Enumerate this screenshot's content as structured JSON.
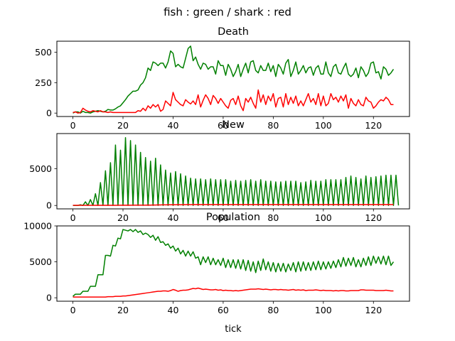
{
  "figure": {
    "suptitle": "fish : green / shark : red",
    "xlabel": "tick",
    "colors": {
      "fish": "#008000",
      "shark": "#ff0000"
    }
  },
  "chart_data": [
    {
      "type": "line",
      "title": "Death",
      "x_ticks": [
        0,
        20,
        40,
        60,
        80,
        100,
        120
      ],
      "y_ticks": [
        0,
        250,
        500
      ],
      "xlim": [
        -6.4,
        134.4
      ],
      "ylim": [
        -28,
        590
      ],
      "x_start": 0,
      "x_step": 1,
      "series": [
        {
          "color": "#008000",
          "values": [
            0,
            10,
            10,
            0,
            15,
            5,
            5,
            0,
            10,
            15,
            20,
            15,
            10,
            15,
            30,
            25,
            25,
            35,
            50,
            60,
            85,
            110,
            140,
            160,
            180,
            180,
            190,
            230,
            250,
            290,
            370,
            350,
            420,
            410,
            390,
            410,
            410,
            370,
            420,
            510,
            490,
            380,
            400,
            380,
            370,
            450,
            530,
            550,
            430,
            460,
            400,
            360,
            410,
            400,
            360,
            380,
            380,
            320,
            430,
            390,
            390,
            310,
            400,
            360,
            300,
            340,
            400,
            300,
            360,
            410,
            330,
            420,
            430,
            350,
            330,
            390,
            350,
            350,
            410,
            340,
            390,
            300,
            400,
            370,
            320,
            410,
            440,
            300,
            350,
            420,
            320,
            350,
            390,
            330,
            370,
            380,
            310,
            370,
            390,
            320,
            320,
            420,
            330,
            300,
            380,
            400,
            330,
            320,
            370,
            410,
            320,
            300,
            320,
            370,
            290,
            380,
            350,
            300,
            330,
            410,
            420,
            330,
            340,
            280,
            380,
            360,
            310,
            330,
            360
          ]
        },
        {
          "color": "#ff0000",
          "values": [
            5,
            10,
            0,
            5,
            40,
            25,
            15,
            10,
            20,
            15,
            10,
            20,
            10,
            10,
            5,
            10,
            5,
            5,
            5,
            5,
            5,
            5,
            5,
            5,
            5,
            5,
            20,
            15,
            40,
            20,
            60,
            40,
            70,
            50,
            70,
            15,
            30,
            100,
            80,
            60,
            170,
            110,
            90,
            70,
            60,
            110,
            90,
            75,
            100,
            70,
            150,
            50,
            105,
            150,
            120,
            70,
            145,
            120,
            80,
            120,
            90,
            60,
            40,
            105,
            120,
            70,
            140,
            60,
            20,
            120,
            90,
            130,
            80,
            40,
            190,
            90,
            150,
            70,
            140,
            100,
            160,
            50,
            120,
            130,
            50,
            160,
            70,
            130,
            80,
            140,
            60,
            100,
            60,
            110,
            160,
            90,
            120,
            70,
            160,
            60,
            140,
            60,
            80,
            160,
            110,
            130,
            90,
            140,
            100,
            150,
            40,
            120,
            80,
            60,
            110,
            70,
            60,
            130,
            100,
            90,
            40,
            60,
            90,
            110,
            100,
            130,
            110,
            70,
            70
          ]
        }
      ]
    },
    {
      "type": "line",
      "title": "New",
      "x_ticks": [
        0,
        20,
        40,
        60,
        80,
        100,
        120
      ],
      "y_ticks": [
        0,
        5000
      ],
      "xlim": [
        -6.4,
        134.4
      ],
      "ylim": [
        -460,
        9750
      ],
      "x_start": 0,
      "x_step": 1,
      "series": [
        {
          "color": "#008000",
          "values": [
            0,
            0,
            0,
            100,
            0,
            500,
            0,
            800,
            0,
            1600,
            0,
            3100,
            0,
            4700,
            0,
            5800,
            0,
            8200,
            0,
            7500,
            0,
            9200,
            0,
            8800,
            0,
            8200,
            0,
            7200,
            0,
            6500,
            0,
            6000,
            0,
            6400,
            0,
            5500,
            0,
            4800,
            0,
            4400,
            0,
            4600,
            0,
            4300,
            0,
            4000,
            0,
            3700,
            0,
            3600,
            0,
            3600,
            0,
            3500,
            0,
            3600,
            0,
            3500,
            0,
            3500,
            0,
            3500,
            0,
            3300,
            0,
            3400,
            0,
            3300,
            0,
            3400,
            0,
            3500,
            0,
            3300,
            0,
            3500,
            0,
            3300,
            0,
            3300,
            0,
            3200,
            0,
            3200,
            0,
            3300,
            0,
            3300,
            0,
            3300,
            0,
            3100,
            0,
            3200,
            0,
            3400,
            0,
            3300,
            0,
            3300,
            0,
            3500,
            0,
            3500,
            0,
            3500,
            0,
            3500,
            0,
            3800,
            0,
            4000,
            0,
            3800,
            0,
            3600,
            0,
            4000,
            0,
            3800,
            0,
            3900,
            0,
            4000,
            0,
            4100,
            0,
            4100,
            0,
            4100,
            0
          ]
        },
        {
          "color": "#ff0000",
          "values": [
            20,
            20,
            20,
            20,
            20,
            20,
            20,
            20,
            20,
            20,
            30,
            20,
            30,
            20,
            30,
            20,
            30,
            20,
            30,
            30,
            40,
            30,
            40,
            30,
            40,
            40,
            50,
            40,
            50,
            50,
            60,
            50,
            70,
            60,
            80,
            70,
            100,
            80,
            100,
            90,
            110,
            100,
            120,
            100,
            120,
            110,
            130,
            110,
            130,
            120,
            130,
            120,
            130,
            120,
            130,
            120,
            130,
            120,
            130,
            120,
            130,
            120,
            130,
            120,
            130,
            120,
            130,
            120,
            130,
            120,
            130,
            120,
            130,
            120,
            130,
            120,
            130,
            120,
            130,
            120,
            130,
            120,
            130,
            120,
            130,
            120,
            130,
            120,
            130,
            120,
            130,
            120,
            130,
            120,
            130,
            120,
            130,
            120,
            130,
            120,
            130,
            120,
            130,
            120,
            130,
            120,
            130,
            120,
            130,
            120,
            130,
            120,
            130,
            120,
            130,
            120,
            130,
            120,
            130,
            120,
            130,
            120,
            130,
            120,
            130,
            120,
            130,
            120,
            130
          ]
        }
      ]
    },
    {
      "type": "line",
      "title": "Population",
      "xlabel": "tick",
      "x_ticks": [
        0,
        20,
        40,
        60,
        80,
        100,
        120
      ],
      "y_ticks": [
        0,
        5000,
        10000
      ],
      "xlim": [
        -6.4,
        134.4
      ],
      "ylim": [
        -480,
        10000
      ],
      "x_start": 0,
      "x_step": 1,
      "series": [
        {
          "color": "#008000",
          "values": [
            200,
            500,
            500,
            500,
            900,
            900,
            900,
            1600,
            1600,
            1600,
            3200,
            3200,
            3200,
            5900,
            5900,
            5800,
            7300,
            7200,
            8300,
            8200,
            9500,
            9400,
            9300,
            9500,
            9200,
            9500,
            9100,
            9300,
            8800,
            9000,
            8800,
            8400,
            8700,
            8000,
            8500,
            7700,
            7800,
            7300,
            7500,
            6900,
            7200,
            6500,
            6900,
            6100,
            6600,
            5800,
            6500,
            5800,
            6400,
            5500,
            5700,
            4600,
            5700,
            4900,
            5700,
            4600,
            5500,
            4600,
            5300,
            4500,
            5500,
            4200,
            5300,
            4200,
            5300,
            4100,
            5300,
            4000,
            5300,
            3800,
            5200,
            3700,
            5000,
            3500,
            5100,
            3800,
            5400,
            3900,
            5000,
            3700,
            4900,
            3600,
            4800,
            3700,
            4800,
            3600,
            4700,
            3800,
            4900,
            3600,
            5000,
            3700,
            5000,
            3800,
            4900,
            3800,
            5000,
            3900,
            5100,
            3900,
            5000,
            4000,
            5000,
            4100,
            5100,
            4200,
            5300,
            4300,
            5600,
            4400,
            5500,
            4500,
            5600,
            4300,
            5300,
            4300,
            5500,
            4500,
            5700,
            4500,
            5800,
            4800,
            5700,
            4700,
            5800,
            4600,
            5800,
            4500,
            5000
          ]
        },
        {
          "color": "#ff0000",
          "values": [
            100,
            100,
            100,
            100,
            100,
            100,
            100,
            100,
            100,
            100,
            100,
            100,
            100,
            100,
            150,
            150,
            150,
            200,
            200,
            200,
            250,
            250,
            300,
            350,
            400,
            450,
            500,
            550,
            600,
            650,
            700,
            750,
            800,
            850,
            900,
            900,
            950,
            950,
            900,
            1000,
            1150,
            1050,
            900,
            1000,
            1050,
            1050,
            1100,
            1200,
            1300,
            1250,
            1350,
            1250,
            1150,
            1200,
            1150,
            1100,
            1100,
            1150,
            1050,
            1100,
            1000,
            1050,
            1000,
            1000,
            950,
            1000,
            950,
            1000,
            1050,
            1100,
            1150,
            1200,
            1200,
            1200,
            1250,
            1200,
            1150,
            1200,
            1150,
            1100,
            1150,
            1150,
            1100,
            1150,
            1100,
            1100,
            1050,
            1100,
            1150,
            1050,
            1100,
            1050,
            1100,
            1000,
            1050,
            1050,
            1050,
            1100,
            1050,
            1000,
            1050,
            1000,
            1000,
            1000,
            950,
            1000,
            950,
            1000,
            1000,
            950,
            950,
            1000,
            1000,
            1000,
            1000,
            1100,
            1100,
            1050,
            1050,
            1050,
            1050,
            1000,
            1000,
            1000,
            1000,
            1050,
            1000,
            950,
            950
          ]
        }
      ]
    }
  ]
}
